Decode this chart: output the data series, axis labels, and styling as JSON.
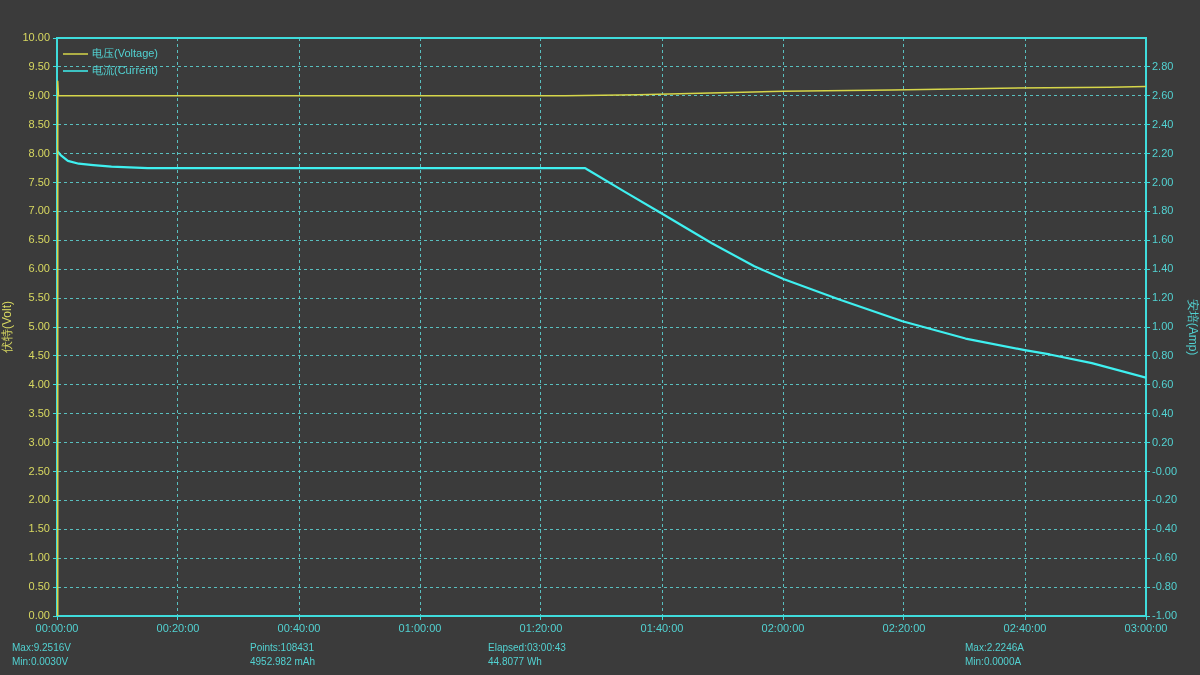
{
  "chart_data": {
    "type": "line",
    "ylabel": "伏特(Volt)",
    "y2label": "安培(Amp)",
    "xlim": [
      0,
      3
    ],
    "xticks": [
      {
        "value": 0,
        "label": "00:00:00"
      },
      {
        "value": 0.333333,
        "label": "00:20:00"
      },
      {
        "value": 0.666667,
        "label": "00:40:00"
      },
      {
        "value": 1,
        "label": "01:00:00"
      },
      {
        "value": 1.333333,
        "label": "01:20:00"
      },
      {
        "value": 1.666667,
        "label": "01:40:00"
      },
      {
        "value": 2,
        "label": "02:00:00"
      },
      {
        "value": 2.333333,
        "label": "02:20:00"
      },
      {
        "value": 2.666667,
        "label": "02:40:00"
      },
      {
        "value": 3,
        "label": "03:00:00"
      }
    ],
    "ylim": [
      0,
      10
    ],
    "yticks": [
      {
        "value": 0,
        "label": "0.00"
      },
      {
        "value": 0.5,
        "label": "0.50"
      },
      {
        "value": 1,
        "label": "1.00"
      },
      {
        "value": 1.5,
        "label": "1.50"
      },
      {
        "value": 2,
        "label": "2.00"
      },
      {
        "value": 2.5,
        "label": "2.50"
      },
      {
        "value": 3,
        "label": "3.00"
      },
      {
        "value": 3.5,
        "label": "3.50"
      },
      {
        "value": 4,
        "label": "4.00"
      },
      {
        "value": 4.5,
        "label": "4.50"
      },
      {
        "value": 5,
        "label": "5.00"
      },
      {
        "value": 5.5,
        "label": "5.50"
      },
      {
        "value": 6,
        "label": "6.00"
      },
      {
        "value": 6.5,
        "label": "6.50"
      },
      {
        "value": 7,
        "label": "7.00"
      },
      {
        "value": 7.5,
        "label": "7.50"
      },
      {
        "value": 8,
        "label": "8.00"
      },
      {
        "value": 8.5,
        "label": "8.50"
      },
      {
        "value": 9,
        "label": "9.00"
      },
      {
        "value": 9.5,
        "label": "9.50"
      },
      {
        "value": 10,
        "label": "10.00"
      }
    ],
    "y2lim": [
      -1,
      3
    ],
    "y2ticks": [
      {
        "value": -1,
        "label": "-1.00"
      },
      {
        "value": -0.8,
        "label": "-0.80"
      },
      {
        "value": -0.6,
        "label": "-0.60"
      },
      {
        "value": -0.4,
        "label": "-0.40"
      },
      {
        "value": -0.2,
        "label": "-0.20"
      },
      {
        "value": 0,
        "label": "-0.00"
      },
      {
        "value": 0.2,
        "label": "0.20"
      },
      {
        "value": 0.4,
        "label": "0.40"
      },
      {
        "value": 0.6,
        "label": "0.60"
      },
      {
        "value": 0.8,
        "label": "0.80"
      },
      {
        "value": 1,
        "label": "1.00"
      },
      {
        "value": 1.2,
        "label": "1.20"
      },
      {
        "value": 1.4,
        "label": "1.40"
      },
      {
        "value": 1.6,
        "label": "1.60"
      },
      {
        "value": 1.8,
        "label": "1.80"
      },
      {
        "value": 2,
        "label": "2.00"
      },
      {
        "value": 2.2,
        "label": "2.20"
      },
      {
        "value": 2.4,
        "label": "2.40"
      },
      {
        "value": 2.6,
        "label": "2.60"
      },
      {
        "value": 2.8,
        "label": "2.80"
      }
    ],
    "series": [
      {
        "name": "电压(Voltage)",
        "color": "#d6d64a",
        "x": [
          0,
          0.002,
          0.004,
          0.5,
          1,
          1.4,
          1.6,
          1.8,
          2,
          2.3,
          2.6,
          2.9,
          3
        ],
        "values": [
          0,
          9.25,
          9,
          9,
          9,
          9,
          9.02,
          9.05,
          9.08,
          9.1,
          9.13,
          9.15,
          9.16
        ]
      },
      {
        "name": "电流(Current)",
        "color": "#3ff0f0",
        "axis": "y2",
        "x": [
          0,
          0.01,
          0.03,
          0.06,
          0.1,
          0.15,
          0.25,
          0.5,
          1,
          1.3,
          1.455,
          1.461,
          1.561,
          1.666,
          1.804,
          1.921,
          2.003,
          2.155,
          2.329,
          2.503,
          2.666,
          2.735,
          2.851,
          3
        ],
        "values": [
          2.22,
          2.19,
          2.15,
          2.13,
          2.12,
          2.11,
          2.1,
          2.1,
          2.1,
          2.1,
          2.1,
          2.09,
          1.94,
          1.785,
          1.58,
          1.42,
          1.33,
          1.19,
          1.04,
          0.92,
          0.84,
          0.81,
          0.75,
          0.65
        ]
      }
    ],
    "grid": true,
    "legend": "top left",
    "marker": "none",
    "line_style": "solid",
    "annotations": [
      "Max:9.2516V",
      "Min:0.0030V",
      "Points:108431",
      "4952.982 mAh",
      "Elapsed:03:00:43",
      "44.8077 Wh",
      "Max:2.2246A",
      "Min:0.0000A"
    ]
  }
}
